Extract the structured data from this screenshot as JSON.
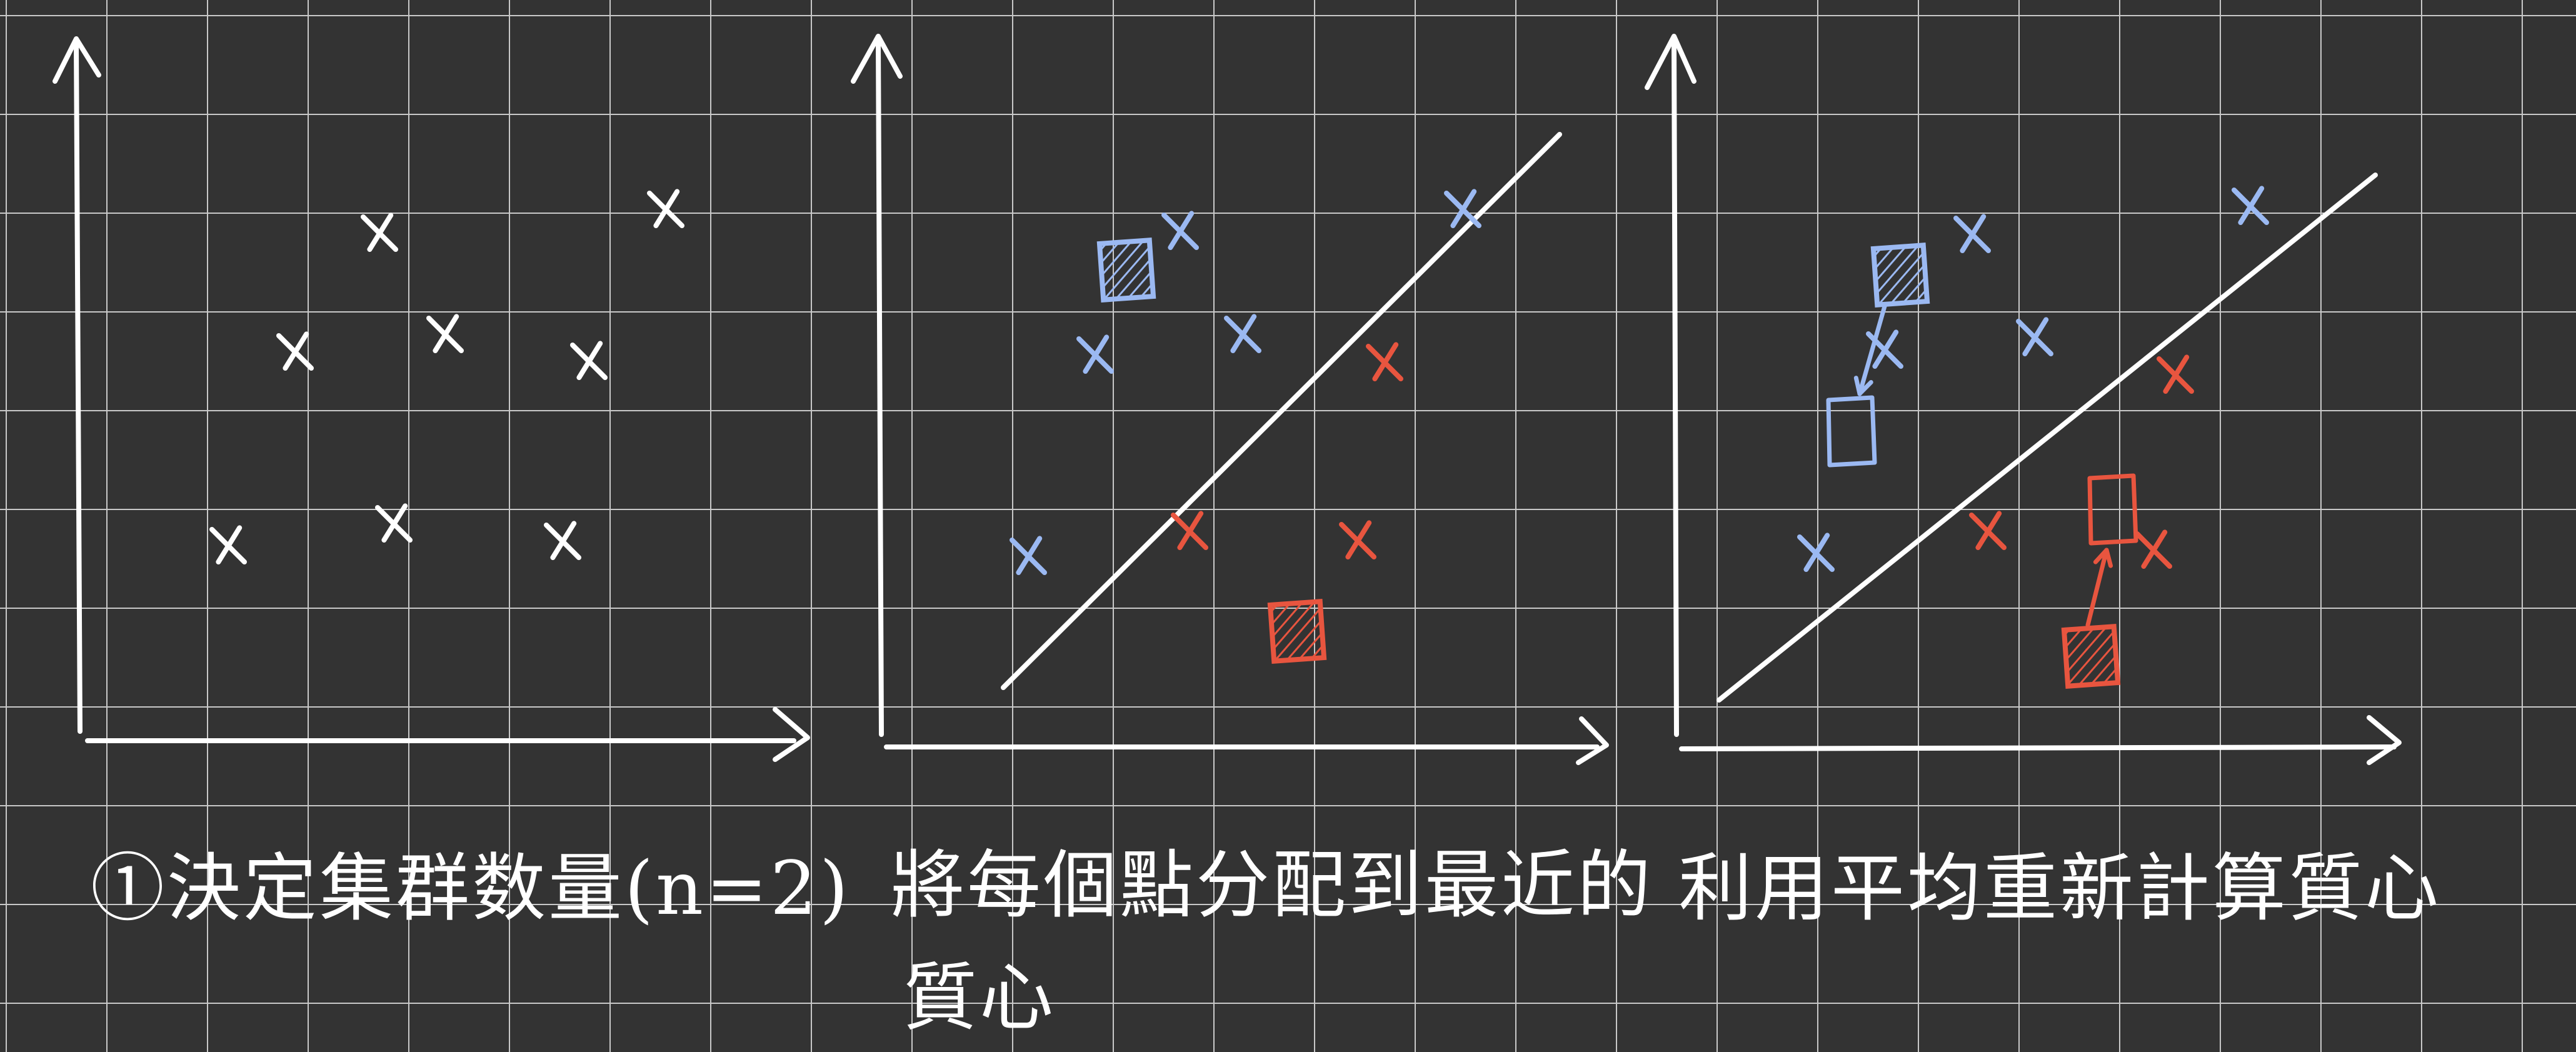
{
  "colors": {
    "background": "#333333",
    "grid": "#c9c9c9",
    "chalk": "#ffffff",
    "cluster_blue": "#9bb9f2",
    "cluster_red": "#e8553f"
  },
  "panels": [
    {
      "caption": "①決定集群数量(n=2)",
      "data_points": 8,
      "has_boundary": false
    },
    {
      "caption": "將每個點分配到最近的",
      "caption_line2": "質心",
      "blue_points": 5,
      "red_points": 3,
      "centroids": [
        "blue",
        "red"
      ],
      "has_boundary": true
    },
    {
      "caption": "利用平均重新計算質心",
      "blue_points": 5,
      "red_points": 3,
      "centroids_old": [
        "blue",
        "red"
      ],
      "centroids_new": [
        "blue",
        "red"
      ],
      "has_boundary": true
    }
  ]
}
